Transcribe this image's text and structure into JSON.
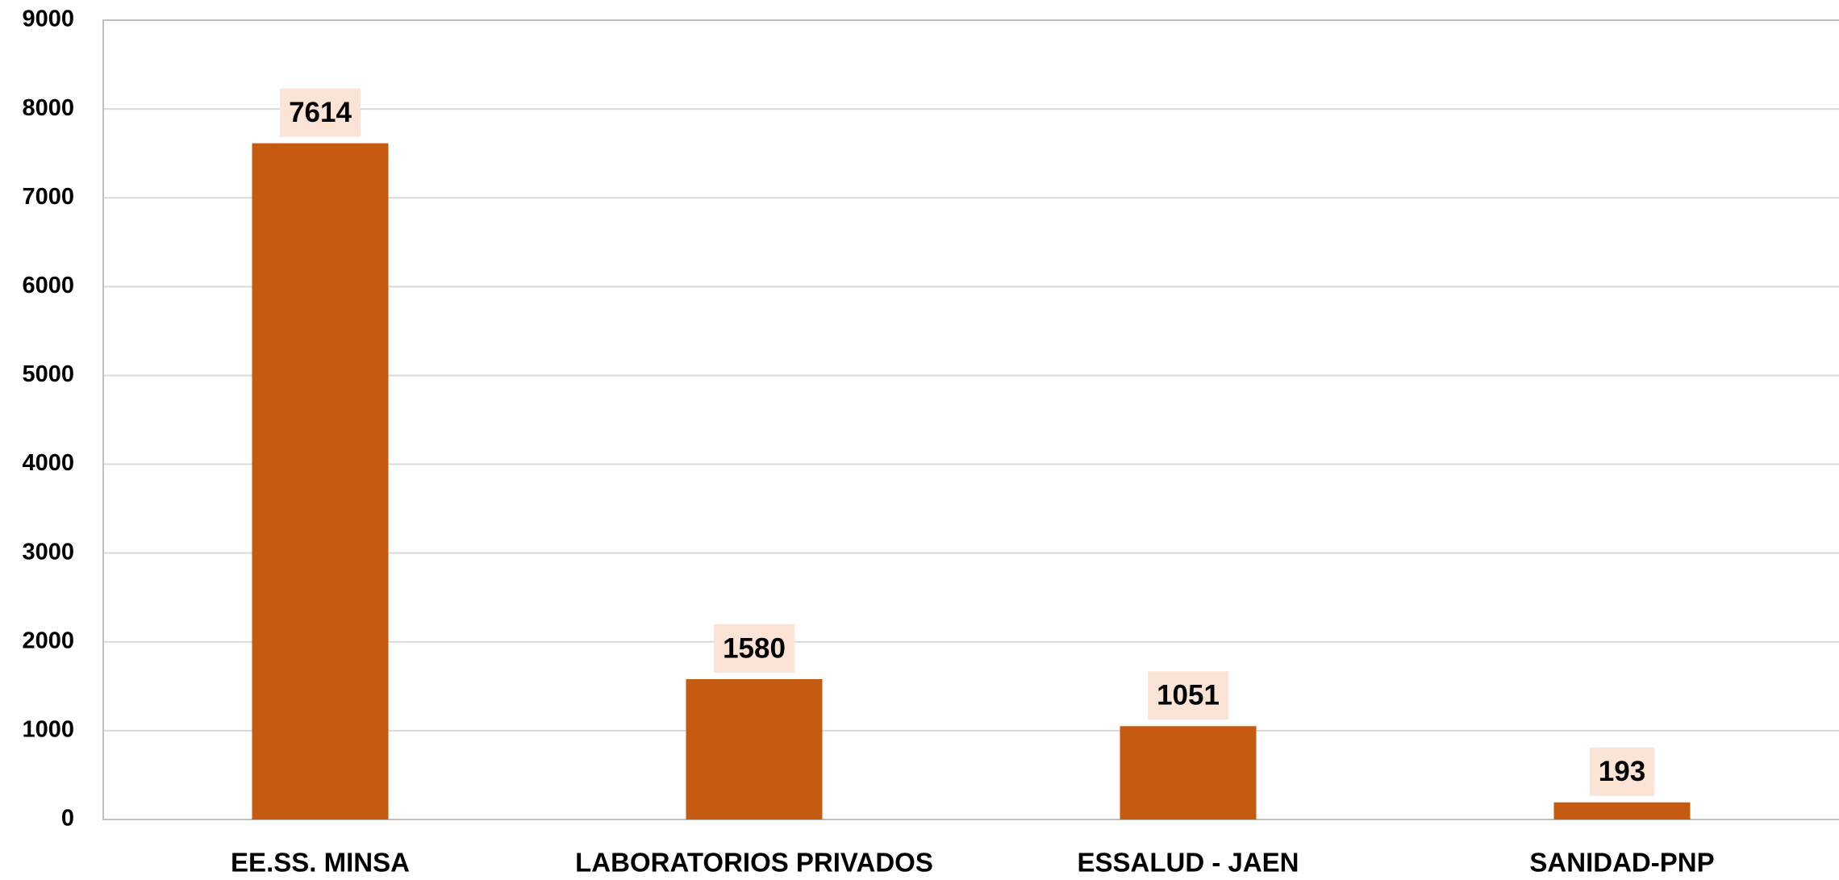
{
  "chart_data": {
    "type": "bar",
    "categories": [
      "EE.SS. MINSA",
      "LABORATORIOS PRIVADOS",
      "ESSALUD - JAEN",
      "SANIDAD-PNP"
    ],
    "values": [
      7614,
      1580,
      1051,
      193
    ],
    "color": "#c55a11",
    "label_background": "#fbe3d5",
    "ylim": [
      0,
      9000
    ],
    "yticks": [
      0,
      1000,
      2000,
      3000,
      4000,
      5000,
      6000,
      7000,
      8000,
      9000
    ],
    "grid": true
  }
}
